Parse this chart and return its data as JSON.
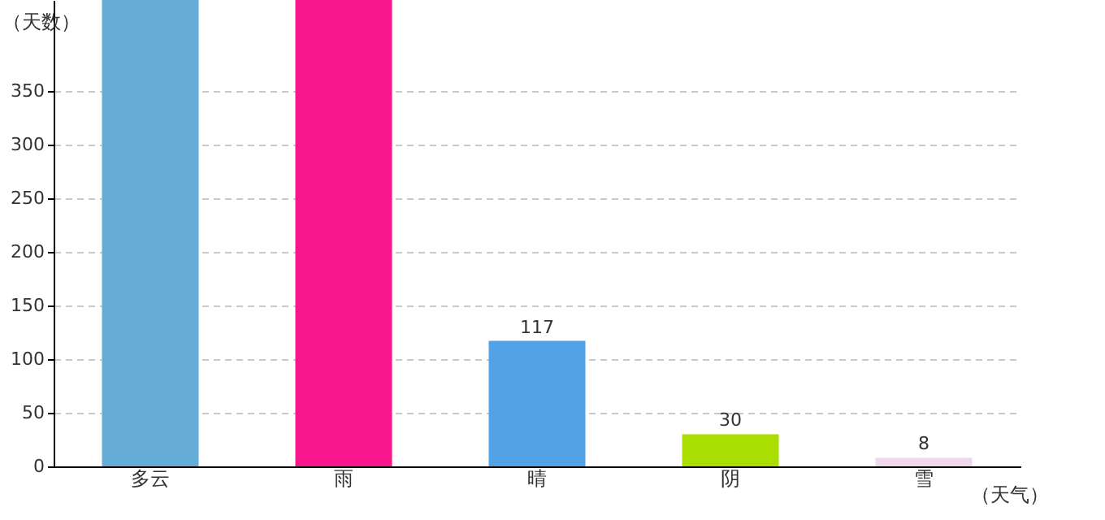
{
  "chart_data": {
    "type": "bar",
    "xlabel": "（天气）",
    "ylabel": "（天数）",
    "categories": [
      "多云",
      "雨",
      "晴",
      "阴",
      "雪"
    ],
    "values": [
      435,
      435,
      117,
      30,
      8
    ],
    "colors": [
      "#65acd9",
      "#f7168c",
      "#52a2e8",
      "#aadd00",
      "#f0d8ec"
    ],
    "value_labels": [
      null,
      null,
      "117",
      "30",
      "8"
    ],
    "ylim": [
      0,
      435
    ],
    "yticks": [
      0,
      50,
      100,
      150,
      200,
      250,
      300,
      350
    ],
    "grid": "y"
  }
}
